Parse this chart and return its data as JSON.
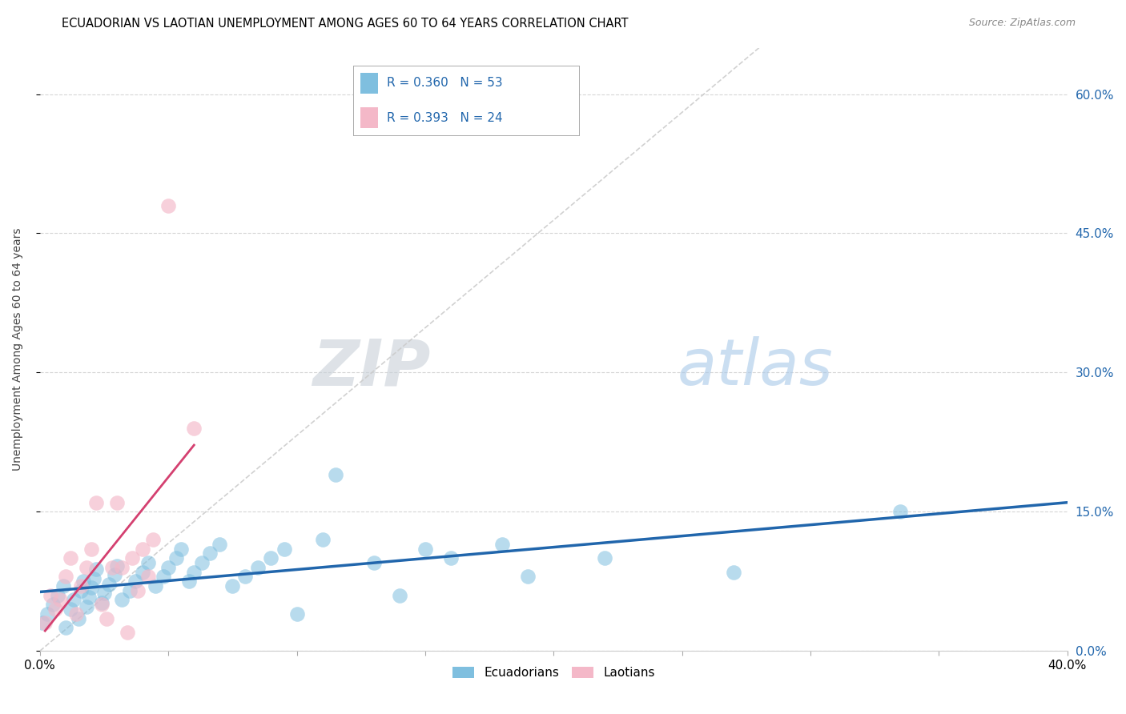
{
  "title": "ECUADORIAN VS LAOTIAN UNEMPLOYMENT AMONG AGES 60 TO 64 YEARS CORRELATION CHART",
  "source": "Source: ZipAtlas.com",
  "ylabel": "Unemployment Among Ages 60 to 64 years",
  "xlim": [
    0.0,
    0.4
  ],
  "ylim": [
    0.0,
    0.65
  ],
  "xticks": [
    0.0,
    0.05,
    0.1,
    0.15,
    0.2,
    0.25,
    0.3,
    0.35,
    0.4
  ],
  "yticks": [
    0.0,
    0.15,
    0.3,
    0.45,
    0.6
  ],
  "ytick_labels_right": [
    "0.0%",
    "15.0%",
    "30.0%",
    "45.0%",
    "60.0%"
  ],
  "grid_color": "#cccccc",
  "background_color": "#ffffff",
  "blue_color": "#7fbfdf",
  "pink_color": "#f4b8c8",
  "blue_line_color": "#2166ac",
  "pink_line_color": "#d44070",
  "diag_line_color": "#cccccc",
  "r_blue": 0.36,
  "n_blue": 53,
  "r_pink": 0.393,
  "n_pink": 24,
  "legend_label_blue": "Ecuadorians",
  "legend_label_pink": "Laotians",
  "blue_x": [
    0.001,
    0.003,
    0.005,
    0.007,
    0.009,
    0.01,
    0.012,
    0.013,
    0.015,
    0.016,
    0.017,
    0.018,
    0.019,
    0.02,
    0.021,
    0.022,
    0.024,
    0.025,
    0.027,
    0.029,
    0.03,
    0.032,
    0.035,
    0.037,
    0.04,
    0.042,
    0.045,
    0.048,
    0.05,
    0.053,
    0.055,
    0.058,
    0.06,
    0.063,
    0.066,
    0.07,
    0.075,
    0.08,
    0.085,
    0.09,
    0.095,
    0.1,
    0.11,
    0.115,
    0.13,
    0.14,
    0.15,
    0.16,
    0.18,
    0.19,
    0.22,
    0.27,
    0.335
  ],
  "blue_y": [
    0.03,
    0.04,
    0.05,
    0.06,
    0.07,
    0.025,
    0.045,
    0.055,
    0.035,
    0.065,
    0.075,
    0.048,
    0.058,
    0.068,
    0.078,
    0.088,
    0.052,
    0.062,
    0.072,
    0.082,
    0.092,
    0.055,
    0.065,
    0.075,
    0.085,
    0.095,
    0.07,
    0.08,
    0.09,
    0.1,
    0.11,
    0.075,
    0.085,
    0.095,
    0.105,
    0.115,
    0.07,
    0.08,
    0.09,
    0.1,
    0.11,
    0.04,
    0.12,
    0.19,
    0.095,
    0.06,
    0.11,
    0.1,
    0.115,
    0.08,
    0.1,
    0.085,
    0.15
  ],
  "pink_x": [
    0.002,
    0.004,
    0.006,
    0.008,
    0.01,
    0.012,
    0.014,
    0.016,
    0.018,
    0.02,
    0.022,
    0.024,
    0.026,
    0.028,
    0.03,
    0.032,
    0.034,
    0.036,
    0.038,
    0.04,
    0.042,
    0.044,
    0.05,
    0.06
  ],
  "pink_y": [
    0.03,
    0.06,
    0.045,
    0.055,
    0.08,
    0.1,
    0.04,
    0.07,
    0.09,
    0.11,
    0.16,
    0.05,
    0.035,
    0.09,
    0.16,
    0.09,
    0.02,
    0.1,
    0.065,
    0.11,
    0.08,
    0.12,
    0.48,
    0.24
  ]
}
